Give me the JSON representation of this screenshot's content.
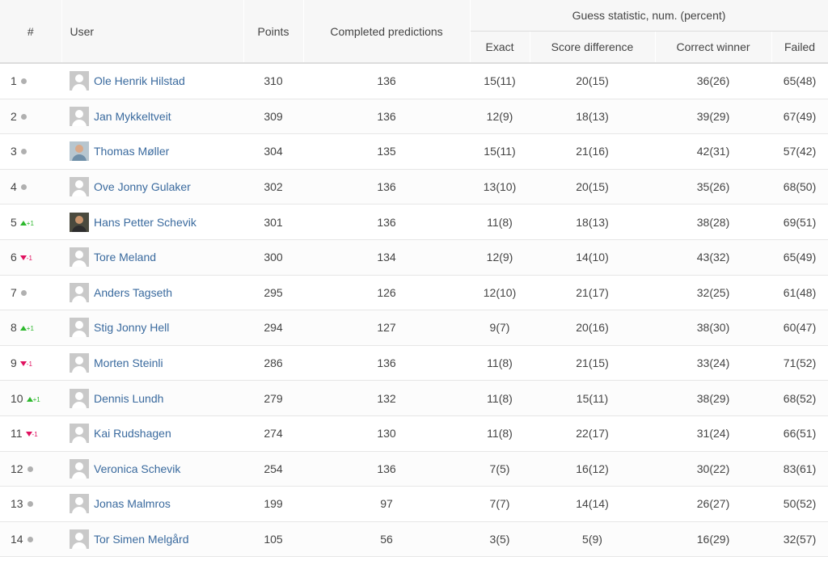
{
  "headers": {
    "rank": "#",
    "user": "User",
    "points": "Points",
    "completed": "Completed predictions",
    "group": "Guess statistic, num. (percent)",
    "exact": "Exact",
    "score_diff": "Score difference",
    "correct_winner": "Correct winner",
    "failed": "Failed"
  },
  "colors": {
    "up": "#2db82d",
    "down": "#e0115f",
    "link": "#3a6a9e",
    "neutral": "#b0b0b0"
  },
  "rows": [
    {
      "rank": "1",
      "trend": "none",
      "change": "",
      "avatar": "default-avatar",
      "name": "Ole Henrik Hilstad",
      "points": "310",
      "completed": "136",
      "exact": "15(11)",
      "score_diff": "20(15)",
      "correct_winner": "36(26)",
      "failed": "65(48)"
    },
    {
      "rank": "2",
      "trend": "none",
      "change": "",
      "avatar": "default-avatar",
      "name": "Jan Mykkeltveit",
      "points": "309",
      "completed": "136",
      "exact": "12(9)",
      "score_diff": "18(13)",
      "correct_winner": "39(29)",
      "failed": "67(49)"
    },
    {
      "rank": "3",
      "trend": "none",
      "change": "",
      "avatar": "photo-avatar-1",
      "name": "Thomas Møller",
      "points": "304",
      "completed": "135",
      "exact": "15(11)",
      "score_diff": "21(16)",
      "correct_winner": "42(31)",
      "failed": "57(42)"
    },
    {
      "rank": "4",
      "trend": "none",
      "change": "",
      "avatar": "default-avatar",
      "name": "Ove Jonny Gulaker",
      "points": "302",
      "completed": "136",
      "exact": "13(10)",
      "score_diff": "20(15)",
      "correct_winner": "35(26)",
      "failed": "68(50)"
    },
    {
      "rank": "5",
      "trend": "up",
      "change": "+1",
      "avatar": "photo-avatar-2",
      "name": "Hans Petter Schevik",
      "points": "301",
      "completed": "136",
      "exact": "11(8)",
      "score_diff": "18(13)",
      "correct_winner": "38(28)",
      "failed": "69(51)"
    },
    {
      "rank": "6",
      "trend": "down",
      "change": "-1",
      "avatar": "default-avatar",
      "name": "Tore Meland",
      "points": "300",
      "completed": "134",
      "exact": "12(9)",
      "score_diff": "14(10)",
      "correct_winner": "43(32)",
      "failed": "65(49)"
    },
    {
      "rank": "7",
      "trend": "none",
      "change": "",
      "avatar": "default-avatar",
      "name": "Anders Tagseth",
      "points": "295",
      "completed": "126",
      "exact": "12(10)",
      "score_diff": "21(17)",
      "correct_winner": "32(25)",
      "failed": "61(48)"
    },
    {
      "rank": "8",
      "trend": "up",
      "change": "+1",
      "avatar": "default-avatar",
      "name": "Stig Jonny Hell",
      "points": "294",
      "completed": "127",
      "exact": "9(7)",
      "score_diff": "20(16)",
      "correct_winner": "38(30)",
      "failed": "60(47)"
    },
    {
      "rank": "9",
      "trend": "down",
      "change": "-1",
      "avatar": "default-avatar",
      "name": "Morten Steinli",
      "points": "286",
      "completed": "136",
      "exact": "11(8)",
      "score_diff": "21(15)",
      "correct_winner": "33(24)",
      "failed": "71(52)"
    },
    {
      "rank": "10",
      "trend": "up",
      "change": "+1",
      "avatar": "default-avatar",
      "name": "Dennis Lundh",
      "points": "279",
      "completed": "132",
      "exact": "11(8)",
      "score_diff": "15(11)",
      "correct_winner": "38(29)",
      "failed": "68(52)"
    },
    {
      "rank": "11",
      "trend": "down",
      "change": "-1",
      "avatar": "default-avatar",
      "name": "Kai Rudshagen",
      "points": "274",
      "completed": "130",
      "exact": "11(8)",
      "score_diff": "22(17)",
      "correct_winner": "31(24)",
      "failed": "66(51)"
    },
    {
      "rank": "12",
      "trend": "none",
      "change": "",
      "avatar": "default-avatar",
      "name": "Veronica Schevik",
      "points": "254",
      "completed": "136",
      "exact": "7(5)",
      "score_diff": "16(12)",
      "correct_winner": "30(22)",
      "failed": "83(61)"
    },
    {
      "rank": "13",
      "trend": "none",
      "change": "",
      "avatar": "default-avatar",
      "name": "Jonas Malmros",
      "points": "199",
      "completed": "97",
      "exact": "7(7)",
      "score_diff": "14(14)",
      "correct_winner": "26(27)",
      "failed": "50(52)"
    },
    {
      "rank": "14",
      "trend": "none",
      "change": "",
      "avatar": "default-avatar",
      "name": "Tor Simen Melgård",
      "points": "105",
      "completed": "56",
      "exact": "3(5)",
      "score_diff": "5(9)",
      "correct_winner": "16(29)",
      "failed": "32(57)"
    }
  ]
}
